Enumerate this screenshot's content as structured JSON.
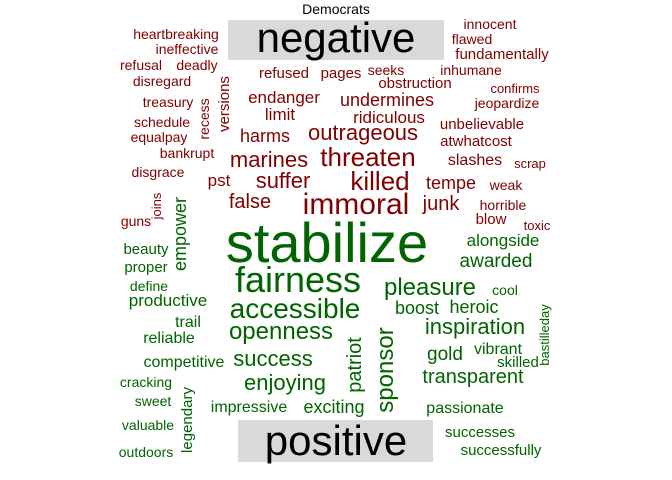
{
  "chart_data": {
    "type": "comparison_wordcloud",
    "title": "Democrats",
    "groups": [
      {
        "name": "negative",
        "color": "#800000"
      },
      {
        "name": "positive",
        "color": "#006400"
      }
    ],
    "words": {
      "negative": [
        "heartbreaking",
        "innocent",
        "flawed",
        "ineffective",
        "fundamentally",
        "refusal",
        "deadly",
        "refused",
        "pages",
        "seeks",
        "inhumane",
        "disregard",
        "obstruction",
        "confirms",
        "treasury",
        "endanger",
        "undermines",
        "jeopardize",
        "schedule",
        "recess",
        "versions",
        "limit",
        "ridiculous",
        "unbelievable",
        "equalpay",
        "harms",
        "outrageous",
        "atwhatcost",
        "bankrupt",
        "marines",
        "threaten",
        "slashes",
        "scrap",
        "disgrace",
        "pst",
        "suffer",
        "killed",
        "tempe",
        "weak",
        "false",
        "immoral",
        "junk",
        "horrible",
        "guns",
        "joins",
        "blow",
        "toxic"
      ],
      "positive": [
        "stabilize",
        "alongside",
        "beauty",
        "empower",
        "awarded",
        "proper",
        "fairness",
        "pleasure",
        "define",
        "cool",
        "productive",
        "accessible",
        "boost",
        "heroic",
        "trail",
        "bastilleday",
        "reliable",
        "openness",
        "inspiration",
        "competitive",
        "success",
        "sponsor",
        "gold",
        "vibrant",
        "patriot",
        "skilled",
        "cracking",
        "enjoying",
        "transparent",
        "sweet",
        "legendary",
        "impressive",
        "exciting",
        "passionate",
        "valuable",
        "successes",
        "outdoors",
        "successfully"
      ]
    }
  }
}
